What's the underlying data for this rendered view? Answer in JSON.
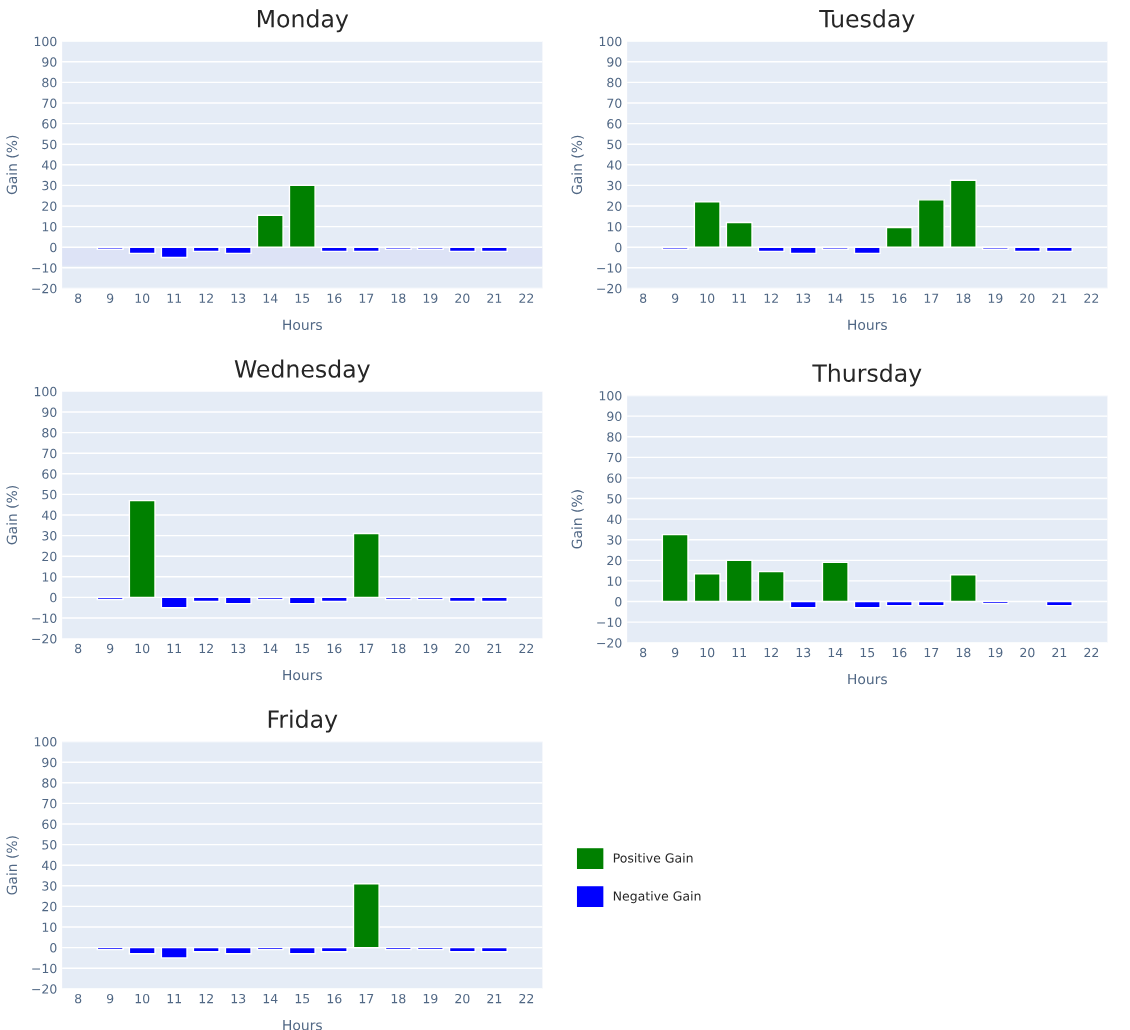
{
  "chart_data": [
    {
      "type": "bar",
      "title": "Monday",
      "xlabel": "Hours",
      "ylabel": "Gain (%)",
      "x": [
        9,
        10,
        11,
        12,
        13,
        14,
        15,
        16,
        17,
        18,
        19,
        20,
        21
      ],
      "series": [
        {
          "color": "#008000",
          "values": [
            null,
            null,
            null,
            null,
            null,
            15.5,
            30,
            null,
            null,
            null,
            null,
            null,
            null
          ]
        },
        {
          "color": "#0000ff",
          "values": [
            -1,
            -3,
            -5,
            -2,
            -3,
            null,
            null,
            -2,
            -2,
            -1,
            -1,
            -2,
            -2
          ]
        }
      ],
      "bands": [
        {
          "axis": "y",
          "from": -9,
          "to": 0,
          "color": "#dde3f6"
        }
      ],
      "xlim": [
        7.5,
        22.5
      ],
      "xticks": [
        8,
        9,
        10,
        11,
        12,
        13,
        14,
        15,
        16,
        17,
        18,
        19,
        20,
        21,
        22
      ],
      "ylim": [
        -20,
        100
      ],
      "yticks": [
        -20,
        -10,
        0,
        10,
        20,
        30,
        40,
        50,
        60,
        70,
        80,
        90,
        100
      ],
      "grid": "y"
    },
    {
      "type": "bar",
      "title": "Tuesday",
      "xlabel": "Hours",
      "ylabel": "Gain (%)",
      "x": [
        9,
        10,
        11,
        12,
        13,
        14,
        15,
        16,
        17,
        18,
        19,
        20,
        21
      ],
      "series": [
        {
          "color": "#008000",
          "values": [
            null,
            22,
            12,
            null,
            null,
            null,
            null,
            9.5,
            23,
            32.5,
            null,
            null,
            null
          ]
        },
        {
          "color": "#0000ff",
          "values": [
            -1,
            null,
            null,
            -2,
            -3,
            -1,
            -3,
            null,
            null,
            null,
            -1,
            -2,
            -2
          ]
        }
      ],
      "xlim": [
        7.5,
        22.5
      ],
      "xticks": [
        8,
        9,
        10,
        11,
        12,
        13,
        14,
        15,
        16,
        17,
        18,
        19,
        20,
        21,
        22
      ],
      "ylim": [
        -20,
        100
      ],
      "yticks": [
        -20,
        -10,
        0,
        10,
        20,
        30,
        40,
        50,
        60,
        70,
        80,
        90,
        100
      ],
      "grid": "y"
    },
    {
      "type": "bar",
      "title": "Wednesday",
      "xlabel": "Hours",
      "ylabel": "Gain (%)",
      "x": [
        9,
        10,
        11,
        12,
        13,
        14,
        15,
        16,
        17,
        18,
        19,
        20,
        21
      ],
      "series": [
        {
          "color": "#008000",
          "values": [
            null,
            47,
            null,
            null,
            null,
            null,
            null,
            null,
            31,
            null,
            null,
            null,
            null
          ]
        },
        {
          "color": "#0000ff",
          "values": [
            -1,
            null,
            -5,
            -2,
            -3,
            -1,
            -3,
            -2,
            null,
            -1,
            -1,
            -2,
            -2
          ]
        }
      ],
      "xlim": [
        7.5,
        22.5
      ],
      "xticks": [
        8,
        9,
        10,
        11,
        12,
        13,
        14,
        15,
        16,
        17,
        18,
        19,
        20,
        21,
        22
      ],
      "ylim": [
        -20,
        100
      ],
      "yticks": [
        -20,
        -10,
        0,
        10,
        20,
        30,
        40,
        50,
        60,
        70,
        80,
        90,
        100
      ],
      "grid": "y"
    },
    {
      "type": "bar",
      "title": "Thursday",
      "xlabel": "Hours",
      "ylabel": "Gain (%)",
      "x": [
        9,
        10,
        11,
        12,
        13,
        14,
        15,
        16,
        17,
        18,
        19,
        20,
        21
      ],
      "series": [
        {
          "color": "#008000",
          "values": [
            32.5,
            13.5,
            20,
            14.5,
            null,
            19,
            null,
            null,
            null,
            13,
            null,
            null,
            null
          ]
        },
        {
          "color": "#0000ff",
          "values": [
            null,
            null,
            null,
            null,
            -3,
            null,
            -3,
            -2,
            -2,
            null,
            -1,
            null,
            -2
          ]
        }
      ],
      "xlim": [
        7.5,
        22.5
      ],
      "xticks": [
        8,
        9,
        10,
        11,
        12,
        13,
        14,
        15,
        16,
        17,
        18,
        19,
        20,
        21,
        22
      ],
      "ylim": [
        -20,
        100
      ],
      "yticks": [
        -20,
        -10,
        0,
        10,
        20,
        30,
        40,
        50,
        60,
        70,
        80,
        90,
        100
      ],
      "grid": "y"
    },
    {
      "type": "bar",
      "title": "Friday",
      "xlabel": "Hours",
      "ylabel": "Gain (%)",
      "x": [
        9,
        10,
        11,
        12,
        13,
        14,
        15,
        16,
        17,
        18,
        19,
        20,
        21
      ],
      "series": [
        {
          "name": "Positive Gain",
          "color": "#008000",
          "values": [
            null,
            null,
            null,
            null,
            null,
            null,
            null,
            null,
            31,
            null,
            null,
            null,
            null
          ]
        },
        {
          "name": "Negative Gain",
          "color": "#0000ff",
          "values": [
            -1,
            -3,
            -5,
            -2,
            -3,
            -1,
            -3,
            -2,
            null,
            -1,
            -1,
            -2,
            -2
          ]
        }
      ],
      "xlim": [
        7.5,
        22.5
      ],
      "xticks": [
        8,
        9,
        10,
        11,
        12,
        13,
        14,
        15,
        16,
        17,
        18,
        19,
        20,
        21,
        22
      ],
      "ylim": [
        -20,
        100
      ],
      "yticks": [
        -20,
        -10,
        0,
        10,
        20,
        30,
        40,
        50,
        60,
        70,
        80,
        90,
        100
      ],
      "grid": "y",
      "legend": "right"
    }
  ]
}
